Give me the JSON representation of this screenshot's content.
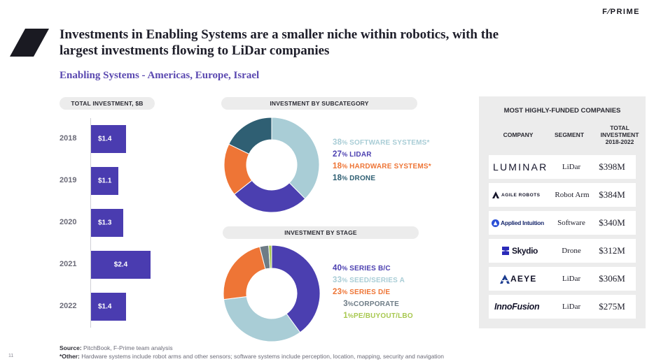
{
  "brand": "F∕PRIME",
  "title": "Investments in Enabling Systems are a smaller niche within robotics, with the largest investments flowing to LiDar companies",
  "subtitle": "Enabling Systems - Americas, Europe, Israel",
  "colors": {
    "bar": "#4a3cb0",
    "software": "#a9cdd6",
    "lidar": "#4b3fb0",
    "hardware": "#ee7536",
    "drone": "#2f5f73",
    "series_bc": "#4b3fb0",
    "seed_series_a": "#a9cdd6",
    "series_de": "#ee7536",
    "corporate": "#6e7c86",
    "pe_buyout": "#a8c850"
  },
  "chart_data": [
    {
      "type": "bar",
      "orientation": "horizontal",
      "title": "TOTAL INVESTMENT, $B",
      "categories": [
        "2018",
        "2019",
        "2020",
        "2021",
        "2022"
      ],
      "values": [
        1.4,
        1.1,
        1.3,
        2.4,
        1.4
      ],
      "labels": [
        "$1.4",
        "$1.1",
        "$1.3",
        "$2.4",
        "$1.4"
      ],
      "xlim": [
        0,
        2.4
      ]
    },
    {
      "type": "pie",
      "variant": "donut",
      "title": "INVESTMENT BY SUBCATEGORY",
      "slices": [
        {
          "name": "SOFTWARE SYSTEMS*",
          "value": 38,
          "color_key": "software"
        },
        {
          "name": "LIDAR",
          "value": 27,
          "color_key": "lidar"
        },
        {
          "name": "HARDWARE SYSTEMS*",
          "value": 18,
          "color_key": "hardware"
        },
        {
          "name": "DRONE",
          "value": 18,
          "color_key": "drone"
        }
      ]
    },
    {
      "type": "pie",
      "variant": "donut",
      "title": "INVESTMENT BY STAGE",
      "slices": [
        {
          "name": "SERIES B/C",
          "value": 40,
          "color_key": "series_bc"
        },
        {
          "name": "SEED/SERIES A",
          "value": 33,
          "color_key": "seed_series_a"
        },
        {
          "name": "SERIES D/E",
          "value": 23,
          "color_key": "series_de"
        },
        {
          "name": "CORPORATE",
          "value": 3,
          "color_key": "corporate"
        },
        {
          "name": "PE/BUYOUT/LBO",
          "value": 1,
          "color_key": "pe_buyout"
        }
      ]
    }
  ],
  "companies": {
    "title": "MOST HIGHLY-FUNDED COMPANIES",
    "headers": {
      "company": "COMPANY",
      "segment": "SEGMENT",
      "total_1": "TOTAL",
      "total_2": "INVESTMENT",
      "total_3": "2018-2022"
    },
    "rows": [
      {
        "company": "LUMINAR",
        "segment": "LiDar",
        "amount": "$398M"
      },
      {
        "company": "AGILE ROBOTS",
        "segment": "Robot Arm",
        "amount": "$384M"
      },
      {
        "company": "Applied Intuition",
        "segment": "Software",
        "amount": "$340M"
      },
      {
        "company": "Skydio",
        "segment": "Drone",
        "amount": "$312M"
      },
      {
        "company": "AEYE",
        "segment": "LiDar",
        "amount": "$306M"
      },
      {
        "company": "InnoFusion",
        "segment": "LiDar",
        "amount": "$275M"
      }
    ]
  },
  "footer": {
    "source_label": "Source:",
    "source": "PitchBook, F-Prime team analysis",
    "other_label": "*Other:",
    "other": "Hardware systems include robot arms and other sensors; software systems include perception, location, mapping, security and navigation"
  },
  "page_number": "11"
}
